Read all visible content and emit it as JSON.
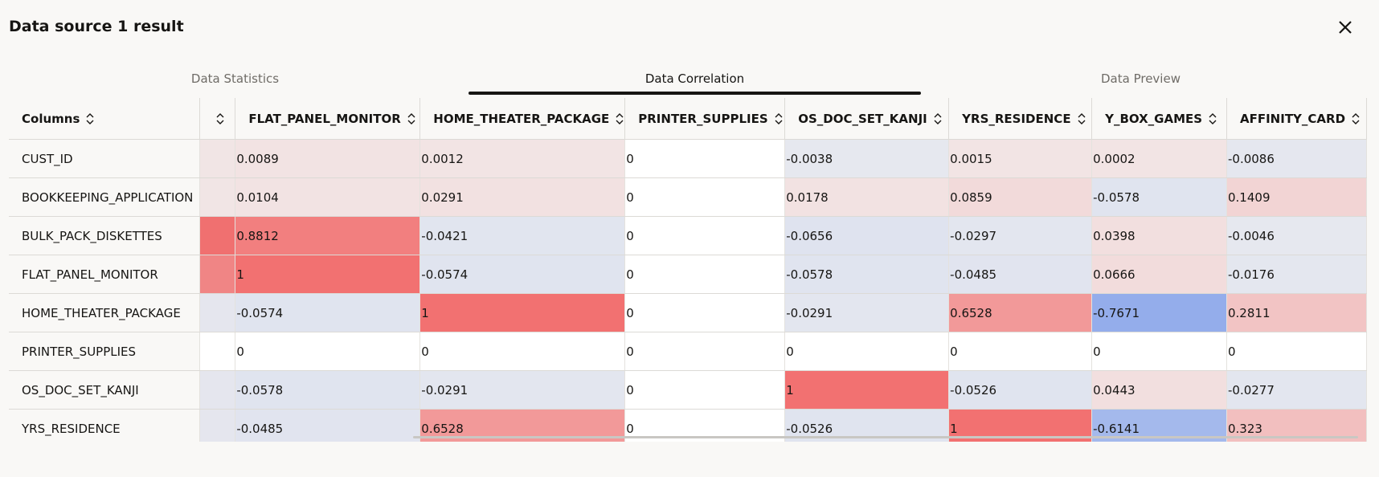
{
  "header": {
    "title": "Data source 1 result"
  },
  "tabs": [
    "Data Statistics",
    "Data Correlation",
    "Data Preview"
  ],
  "table": {
    "row_header": "Columns",
    "columns": [
      "FLAT_PANEL_MONITOR",
      "HOME_THEATER_PACKAGE",
      "PRINTER_SUPPLIES",
      "OS_DOC_SET_KANJI",
      "YRS_RESIDENCE",
      "Y_BOX_GAMES",
      "AFFINITY_CARD"
    ],
    "rows": [
      {
        "label": "CUST_ID",
        "values": [
          0.0089,
          0.0012,
          0,
          -0.0038,
          0.0015,
          0.0002,
          -0.0086
        ]
      },
      {
        "label": "BOOKKEEPING_APPLICATION",
        "values": [
          0.0104,
          0.0291,
          0,
          0.0178,
          0.0859,
          -0.0578,
          0.1409
        ]
      },
      {
        "label": "BULK_PACK_DISKETTES",
        "values": [
          0.8812,
          -0.0421,
          0,
          -0.0656,
          -0.0297,
          0.0398,
          -0.0046
        ]
      },
      {
        "label": "FLAT_PANEL_MONITOR",
        "values": [
          1,
          -0.0574,
          0,
          -0.0578,
          -0.0485,
          0.0666,
          -0.0176
        ]
      },
      {
        "label": "HOME_THEATER_PACKAGE",
        "values": [
          -0.0574,
          1,
          0,
          -0.0291,
          0.6528,
          -0.7671,
          0.2811
        ]
      },
      {
        "label": "PRINTER_SUPPLIES",
        "values": [
          0,
          0,
          0,
          0,
          0,
          0,
          0
        ]
      },
      {
        "label": "OS_DOC_SET_KANJI",
        "values": [
          -0.0578,
          -0.0291,
          0,
          1,
          -0.0526,
          0.0443,
          -0.0277
        ]
      },
      {
        "label": "YRS_RESIDENCE",
        "values": [
          -0.0485,
          0.6528,
          0,
          -0.0526,
          1,
          -0.6141,
          0.323
        ]
      }
    ]
  }
}
